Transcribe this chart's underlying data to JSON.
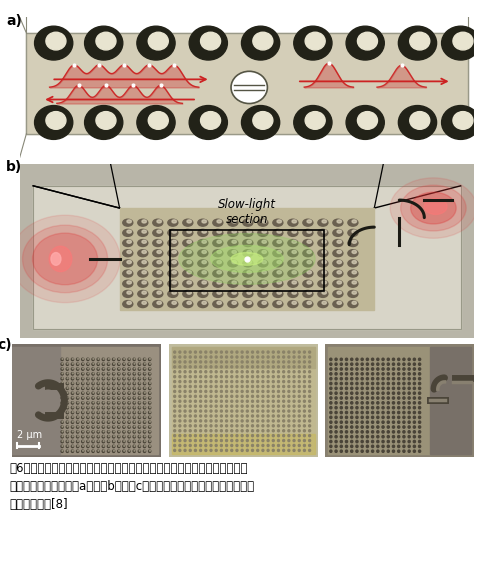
{
  "fig_label_a": "a)",
  "fig_label_b": "b)",
  "fig_label_c": "c)",
  "slow_light_text": "Slow-light\nsection",
  "scale_bar_text": "2 μm",
  "caption_line1": "图6：波导中具有量子点的单光子非线性光学器件，其中单个光子被量子点反",
  "caption_line2": "射，而多个光子通过（a）。（b）和（c）所示分别为样品的示例和扫描电子",
  "caption_line3": "显微镜照片。[8]",
  "bg_color": "#ffffff",
  "caption_fontsize": 8.5,
  "label_fontsize": 10,
  "slow_light_fontsize": 8.5,
  "panel_a_bg": "#d8d4c0",
  "panel_a_hole_dark": "#222218",
  "panel_a_hole_light": "#f0ede0",
  "panel_b_bg": "#c8c5b8",
  "panel_b_pc_bg": "#b0ab98",
  "panel_b_hole_dark": "#555040",
  "panel_b_hole_light": "#e8e4d8",
  "pulse_color": "#cc2222",
  "waveguide_color": "#1a1a14"
}
